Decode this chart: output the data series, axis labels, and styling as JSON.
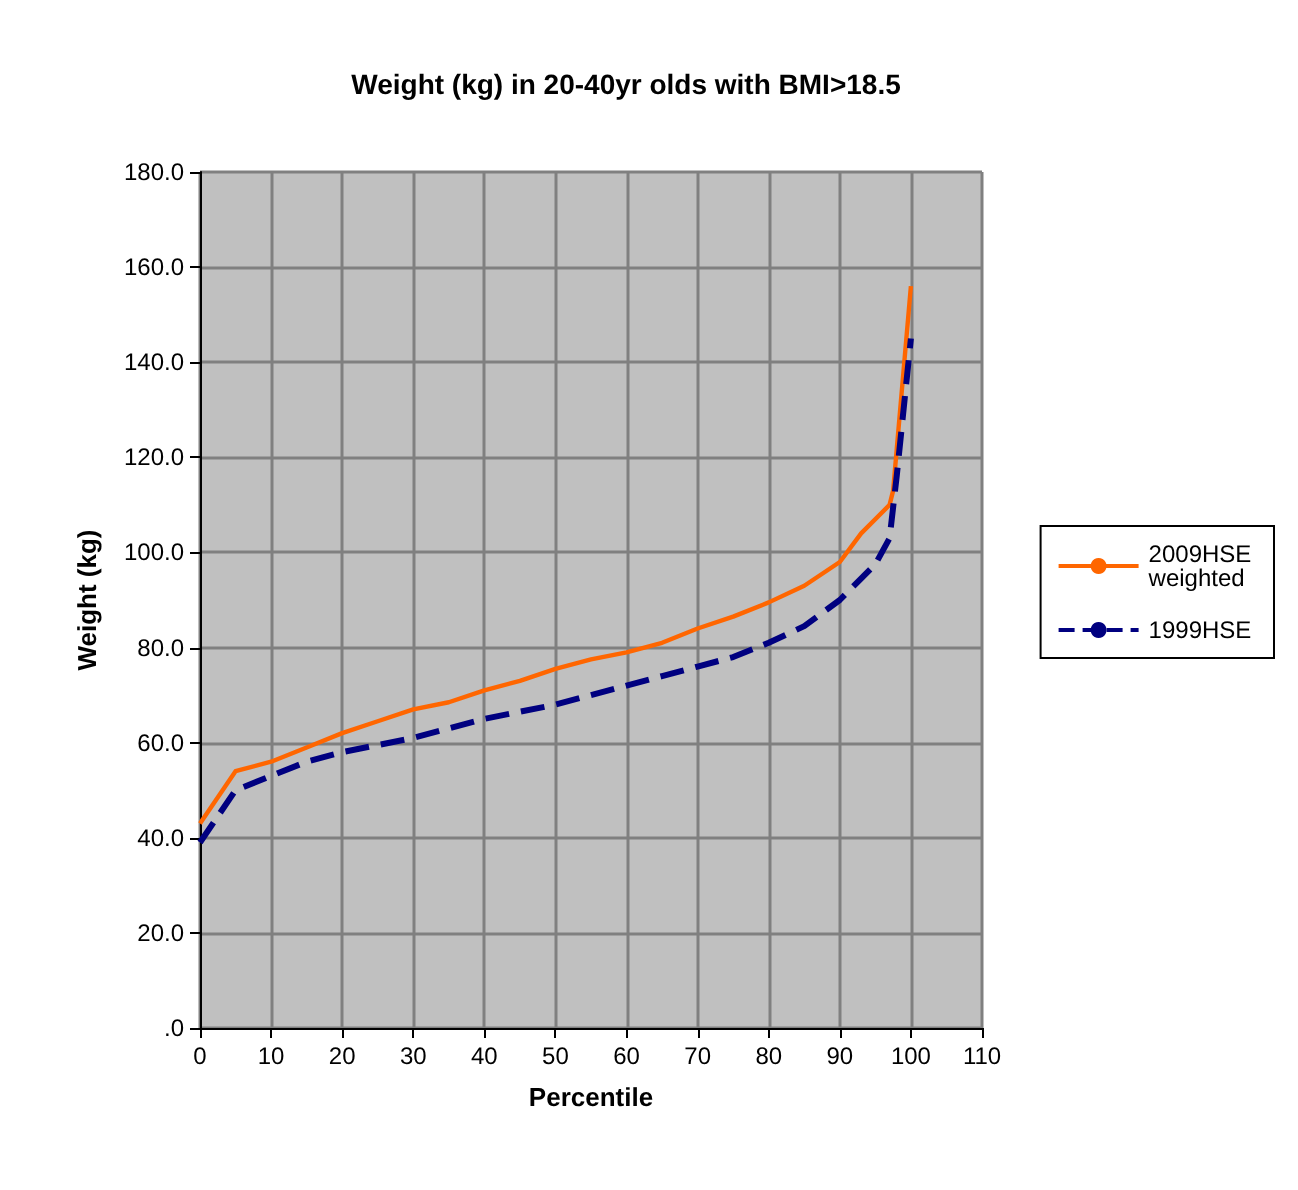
{
  "chart_data": {
    "type": "line",
    "title": "Weight (kg) in 20-40yr olds with BMI>18.5",
    "xlabel": "Percentile",
    "ylabel": "Weight (kg)",
    "xlim": [
      0,
      110
    ],
    "xticks": [
      0,
      10,
      20,
      30,
      40,
      50,
      60,
      70,
      80,
      90,
      100,
      110
    ],
    "ylim": [
      0,
      180
    ],
    "yticks": [
      {
        "value": 0,
        "label": ".0"
      },
      {
        "value": 20,
        "label": "20.0"
      },
      {
        "value": 40,
        "label": "40.0"
      },
      {
        "value": 60,
        "label": "60.0"
      },
      {
        "value": 80,
        "label": "80.0"
      },
      {
        "value": 100,
        "label": "100.0"
      },
      {
        "value": 120,
        "label": "120.0"
      },
      {
        "value": 140,
        "label": "140.0"
      },
      {
        "value": 160,
        "label": "160.0"
      },
      {
        "value": 180,
        "label": "180.0"
      }
    ],
    "grid": true,
    "legend": "right",
    "marker": "none",
    "series": [
      {
        "name": "2009HSE weighted",
        "color": "#ff6600",
        "line_style": "solid",
        "x": [
          0,
          5,
          10,
          15,
          20,
          25,
          30,
          35,
          40,
          45,
          50,
          55,
          60,
          65,
          70,
          75,
          80,
          85,
          90,
          93,
          97,
          97.5,
          100
        ],
        "values": [
          43,
          54,
          56,
          59,
          62,
          64.5,
          67,
          68.5,
          71,
          73,
          75.5,
          77.5,
          79,
          81,
          84,
          86.5,
          89.5,
          93,
          98,
          104,
          110,
          113,
          156
        ]
      },
      {
        "name": "1999HSE",
        "color": "#000080",
        "line_style": "dashed",
        "x": [
          0,
          5,
          10,
          15,
          20,
          25,
          30,
          35,
          40,
          45,
          50,
          55,
          60,
          65,
          70,
          75,
          80,
          85,
          90,
          95,
          97,
          98,
          100
        ],
        "values": [
          39,
          50,
          53,
          56,
          58,
          59.5,
          61,
          63,
          65,
          66.5,
          68,
          70,
          72,
          74,
          76,
          78,
          81,
          84.5,
          90,
          97.5,
          103,
          116,
          145
        ]
      }
    ]
  }
}
